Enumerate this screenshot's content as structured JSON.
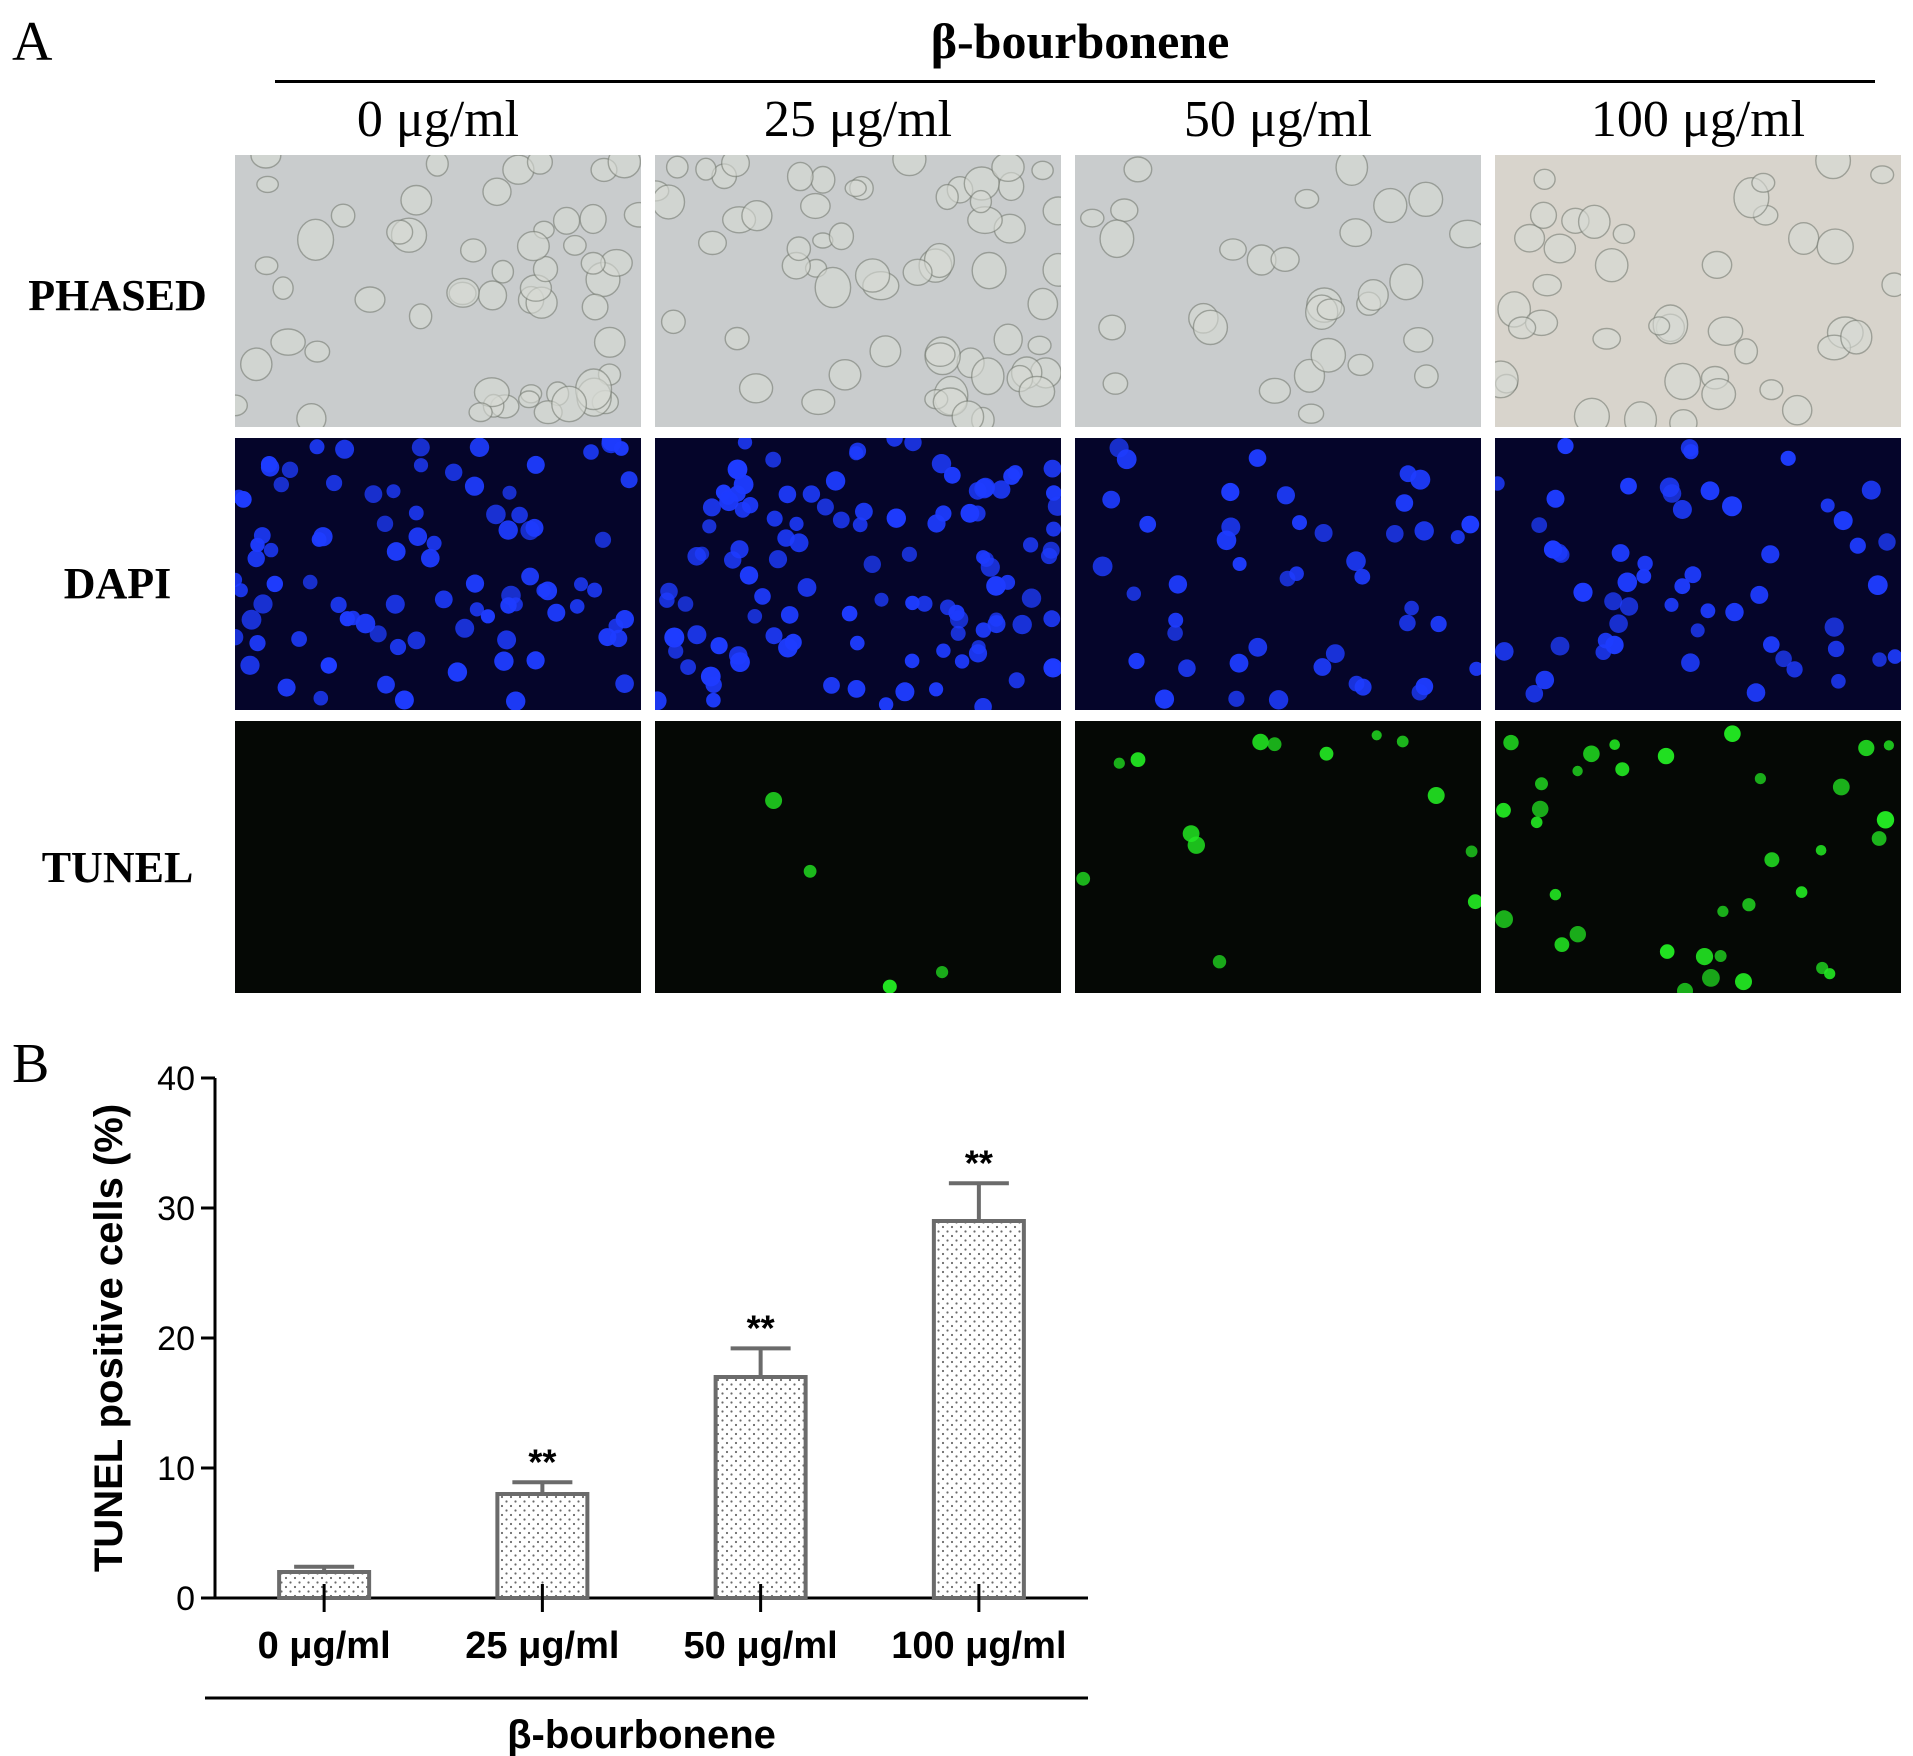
{
  "panel_a": {
    "letter": "A",
    "treatment_title": "β-bourbonene",
    "columns": [
      "0 μg/ml",
      "25 μg/ml",
      "50 μg/ml",
      "100 μg/ml"
    ],
    "rows": [
      "PHASED",
      "DAPI",
      "TUNEL"
    ],
    "colors": {
      "phase_bg": "#c9cccd",
      "phase_bg_warm": "#d8d4cc",
      "dapi_bg": "#05052a",
      "dapi_nucleus": "#1e3cff",
      "tunel_bg": "#050805",
      "tunel_nucleus": "#22e622"
    }
  },
  "panel_b": {
    "letter": "B"
  },
  "chart_data": {
    "type": "bar",
    "categories": [
      "0 μg/ml",
      "25 μg/ml",
      "50 μg/ml",
      "100 μg/ml"
    ],
    "values": [
      2,
      8,
      17,
      29
    ],
    "errors": [
      0.4,
      0.9,
      2.2,
      2.9
    ],
    "significance": [
      "",
      "**",
      "**",
      "**"
    ],
    "ylabel": "TUNEL positive cells (%)",
    "xlabel": "β-bourbonene",
    "ylim": [
      0,
      40
    ],
    "yticks": [
      0,
      10,
      20,
      30,
      40
    ],
    "grid": false,
    "bar_fill": "dotted",
    "bar_edge_color": "#6b6b6b"
  }
}
